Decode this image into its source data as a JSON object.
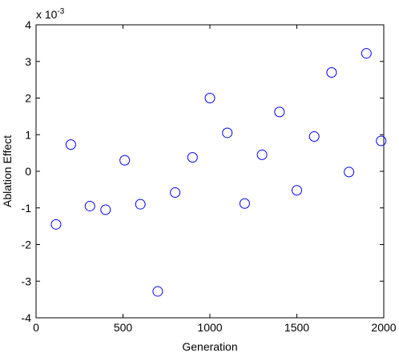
{
  "chart_data": {
    "type": "scatter",
    "title": "",
    "xlabel": "Generation",
    "ylabel": "Ablation Effect",
    "y_scale_multiplier_base": "x 10",
    "y_scale_multiplier_exponent": "-3",
    "xlim": [
      0,
      2000
    ],
    "ylim": [
      -4,
      4
    ],
    "x_ticks": [
      0,
      500,
      1000,
      1500,
      2000
    ],
    "y_ticks": [
      -4,
      -3,
      -2,
      -1,
      0,
      1,
      2,
      3,
      4
    ],
    "x_tick_labels": [
      "0",
      "500",
      "1000",
      "1500",
      "2000"
    ],
    "y_tick_labels": [
      "-4",
      "-3",
      "-2",
      "-1",
      "0",
      "1",
      "2",
      "3",
      "4"
    ],
    "grid": false,
    "marker": "open-circle",
    "marker_color": "#0000ff",
    "series": [
      {
        "points": [
          {
            "x": 115,
            "y": -1.45
          },
          {
            "x": 200,
            "y": 0.73
          },
          {
            "x": 310,
            "y": -0.95
          },
          {
            "x": 400,
            "y": -1.05
          },
          {
            "x": 510,
            "y": 0.3
          },
          {
            "x": 600,
            "y": -0.9
          },
          {
            "x": 700,
            "y": -3.28
          },
          {
            "x": 800,
            "y": -0.58
          },
          {
            "x": 900,
            "y": 0.38
          },
          {
            "x": 1000,
            "y": 2.0
          },
          {
            "x": 1100,
            "y": 1.05
          },
          {
            "x": 1200,
            "y": -0.88
          },
          {
            "x": 1300,
            "y": 0.45
          },
          {
            "x": 1400,
            "y": 1.62
          },
          {
            "x": 1500,
            "y": -0.52
          },
          {
            "x": 1600,
            "y": 0.95
          },
          {
            "x": 1700,
            "y": 2.7
          },
          {
            "x": 1800,
            "y": -0.02
          },
          {
            "x": 1900,
            "y": 3.22
          },
          {
            "x": 1985,
            "y": 0.83
          }
        ]
      }
    ]
  }
}
